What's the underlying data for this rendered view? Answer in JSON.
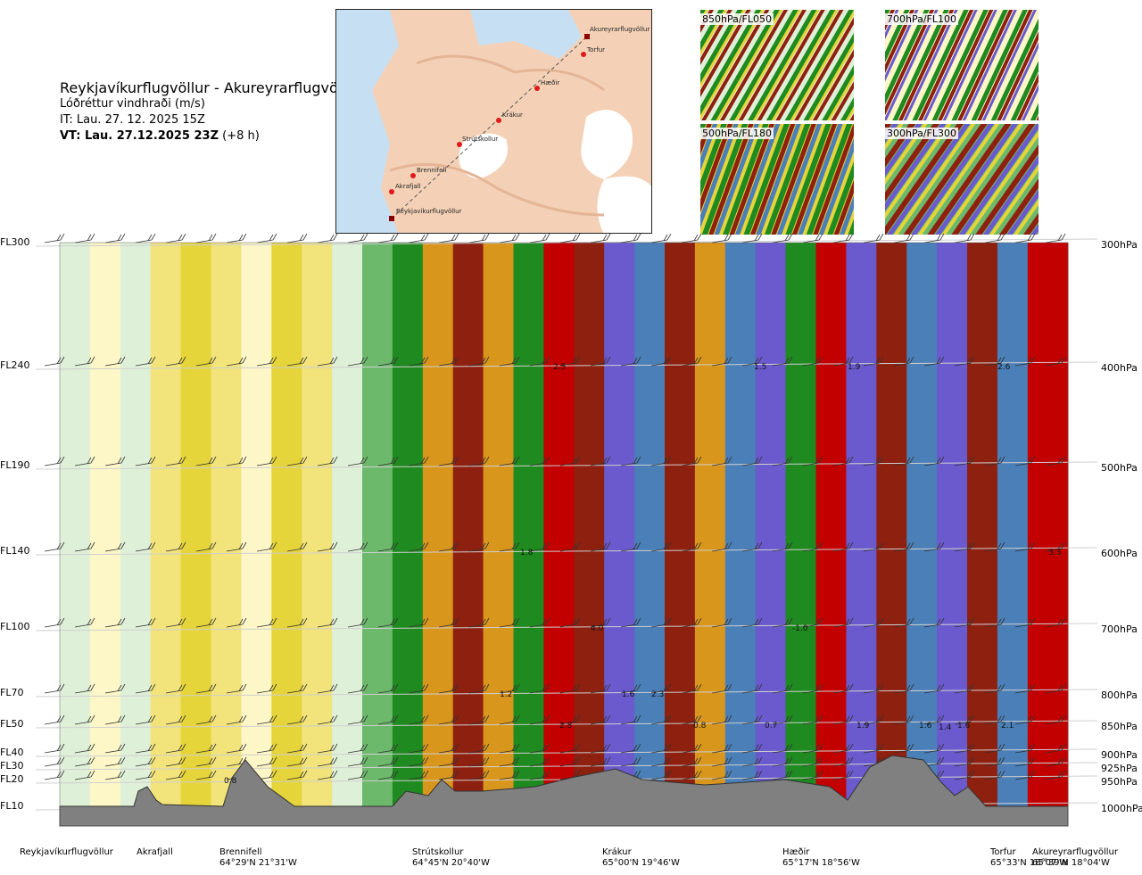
{
  "header": {
    "route": "Reykjavíkurflugvöllur - Akureyrarflugvöllur",
    "subtitle": "Lóðréttur vindhraði (m/s)",
    "it": "IT: Lau. 27. 12. 2025 15Z",
    "vt": "VT: Lau. 27.12.2025 23Z",
    "vt_offset": " (+8 h)"
  },
  "map": {
    "stations": [
      "Akureyrarflugvöllur",
      "Torfur",
      "Hæðir",
      "Krákur",
      "Strútskollur",
      "Brennifell",
      "Akrafjall",
      "Reykjavíkurflugvöllur"
    ]
  },
  "thumbnails": [
    {
      "label": "850hPa/FL050"
    },
    {
      "label": "700hPa/FL100"
    },
    {
      "label": "500hPa/FL180"
    },
    {
      "label": "300hPa/FL300"
    }
  ],
  "chart_data": {
    "type": "heatmap",
    "title": "Lóðréttur vindhraði (m/s)",
    "x_axis_stations": [
      {
        "name": "Reykjavíkurflugvöllur",
        "coord": ""
      },
      {
        "name": "Akrafjall",
        "coord": ""
      },
      {
        "name": "Brennifell",
        "coord": "64°29'N 21°31'W"
      },
      {
        "name": "Strútskollur",
        "coord": "64°45'N 20°40'W"
      },
      {
        "name": "Krákur",
        "coord": "65°00'N 19°46'W"
      },
      {
        "name": "Hæðir",
        "coord": "65°17'N 18°56'W"
      },
      {
        "name": "Torfur",
        "coord": "65°33'N 18°07'W"
      },
      {
        "name": "Akureyrarflugvöllur",
        "coord": "65°39'N 18°04'W"
      }
    ],
    "left_axis": [
      "FL300",
      "FL240",
      "FL190",
      "FL140",
      "FL100",
      "FL70",
      "FL50",
      "FL40",
      "FL30",
      "FL20",
      "FL10"
    ],
    "right_axis": [
      "300hPa",
      "400hPa",
      "500hPa",
      "600hPa",
      "700hPa",
      "800hPa",
      "850hPa",
      "900hPa",
      "925hPa",
      "950hPa",
      "1000hPa"
    ],
    "x_fraction_range": [
      0,
      1
    ],
    "column_fraction_values": [
      0.0,
      0.03,
      0.06,
      0.09,
      0.12,
      0.15,
      0.18,
      0.21,
      0.24,
      0.27,
      0.3,
      0.33,
      0.36,
      0.39,
      0.42,
      0.45,
      0.48,
      0.51,
      0.54,
      0.57,
      0.6,
      0.63,
      0.66,
      0.69,
      0.72,
      0.75,
      0.78,
      0.81,
      0.84,
      0.87,
      0.9,
      0.93,
      0.96,
      1.0
    ],
    "column_classes": [
      "a",
      "b",
      "a",
      "c",
      "d",
      "c",
      "b",
      "d",
      "c",
      "a",
      "e",
      "f",
      "g",
      "h",
      "g",
      "f",
      "i",
      "h",
      "j",
      "k",
      "h",
      "g",
      "k",
      "j",
      "f",
      "i",
      "j",
      "h",
      "k",
      "j",
      "h",
      "k",
      "i",
      "j"
    ],
    "class_colors": {
      "a": "#dff0d8",
      "b": "#fdf7c7",
      "c": "#f2e37a",
      "d": "#e5d43a",
      "e": "#6cb96c",
      "f": "#1f8a1f",
      "g": "#d9961c",
      "h": "#8e2010",
      "i": "#c20000",
      "j": "#6a5acd",
      "k": "#4a7fb8"
    },
    "value_labels": [
      "2.5",
      "1.5",
      "1.9",
      "2.6",
      "1.8",
      "4.0",
      "-1.0",
      "1.2",
      "1.6",
      "2.3",
      "2.8",
      "0.8",
      "0.7",
      "1.9",
      "1.6",
      "1.4",
      "1.6",
      "2.1",
      "3.3",
      "0.8"
    ],
    "legend": "none"
  }
}
